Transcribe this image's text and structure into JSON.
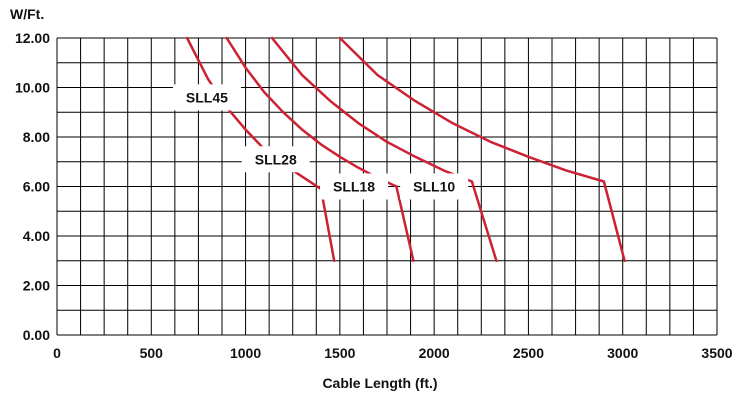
{
  "chart_data": {
    "type": "line",
    "title": "",
    "ylabel": "W/Ft.",
    "xlabel": "Cable Length (ft.)",
    "xlim": [
      0,
      3500
    ],
    "ylim": [
      0,
      12
    ],
    "x_ticks": [
      0,
      500,
      1000,
      1500,
      2000,
      2500,
      3000,
      3500
    ],
    "x_tick_labels": [
      "0",
      "500",
      "1000",
      "1500",
      "2000",
      "2500",
      "3000",
      "3500"
    ],
    "y_ticks": [
      0,
      2,
      4,
      6,
      8,
      10,
      12
    ],
    "y_tick_labels": [
      "0.00",
      "2.00",
      "4.00",
      "6.00",
      "8.00",
      "10.00",
      "12.00"
    ],
    "grid": true,
    "line_color": "#cc2233",
    "series": [
      {
        "name": "SLL45",
        "x": [
          690,
          800,
          900,
          1000,
          1100,
          1200,
          1300,
          1400,
          1470
        ],
        "y": [
          12.0,
          10.35,
          9.2,
          8.3,
          7.5,
          6.9,
          6.4,
          5.9,
          3.0
        ],
        "label_at": [
          795,
          9.6
        ]
      },
      {
        "name": "SLL28",
        "x": [
          900,
          1000,
          1100,
          1200,
          1300,
          1400,
          1500,
          1600,
          1700,
          1800,
          1890
        ],
        "y": [
          12.0,
          10.8,
          9.8,
          9.0,
          8.3,
          7.7,
          7.2,
          6.75,
          6.35,
          6.0,
          3.0
        ],
        "label_at": [
          1160,
          7.1
        ]
      },
      {
        "name": "SLL18",
        "x": [
          1140,
          1300,
          1450,
          1600,
          1750,
          1900,
          2050,
          2200,
          2330
        ],
        "y": [
          12.0,
          10.5,
          9.45,
          8.55,
          7.8,
          7.2,
          6.65,
          6.2,
          3.0
        ],
        "label_at": [
          1575,
          6.0
        ]
      },
      {
        "name": "SLL10",
        "x": [
          1500,
          1700,
          1900,
          2100,
          2300,
          2500,
          2700,
          2900,
          3010
        ],
        "y": [
          12.0,
          10.5,
          9.45,
          8.55,
          7.8,
          7.2,
          6.65,
          6.2,
          3.0
        ],
        "label_at": [
          2000,
          6.0
        ]
      }
    ]
  }
}
